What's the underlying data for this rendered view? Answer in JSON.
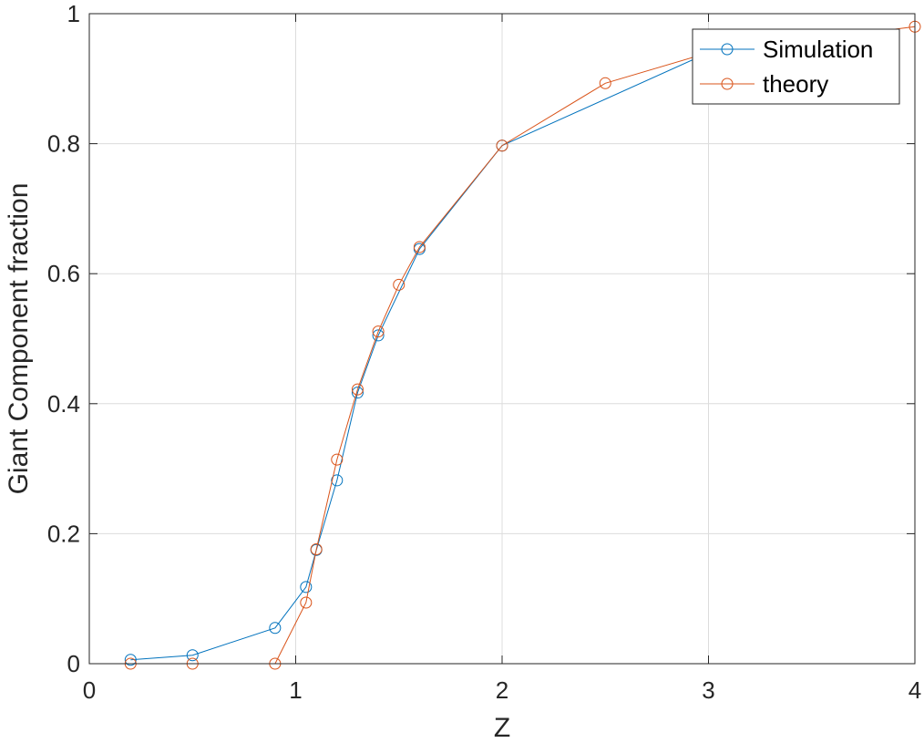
{
  "chart_data": {
    "type": "line",
    "xlabel": "Z",
    "ylabel": "Giant Component fraction",
    "xlim": [
      0,
      4
    ],
    "ylim": [
      0,
      1
    ],
    "xticks": [
      0,
      1,
      2,
      3,
      4
    ],
    "yticks": [
      0,
      0.2,
      0.4,
      0.6,
      0.8,
      1
    ],
    "xtick_labels": [
      "0",
      "1",
      "2",
      "3",
      "4"
    ],
    "ytick_labels": [
      "0",
      "0.2",
      "0.4",
      "0.6",
      "0.8",
      "1"
    ],
    "grid": true,
    "legend_position": "top-right",
    "marker": "circle",
    "series": [
      {
        "name": "Simulation",
        "color": "#0072BD",
        "points": [
          [
            0.2,
            0.006
          ],
          [
            0.5,
            0.013
          ],
          [
            0.9,
            0.055
          ],
          [
            1.05,
            0.118
          ],
          [
            1.1,
            0.175
          ],
          [
            1.2,
            0.282
          ],
          [
            1.3,
            0.417
          ],
          [
            1.4,
            0.505
          ],
          [
            1.6,
            0.638
          ],
          [
            2.0,
            0.797
          ],
          [
            3.0,
            0.94
          ]
        ]
      },
      {
        "name": "theory",
        "color": "#D95319",
        "points": [
          [
            0.2,
            0.0
          ],
          [
            0.5,
            0.0
          ],
          [
            0.9,
            0.0
          ],
          [
            1.05,
            0.094
          ],
          [
            1.1,
            0.176
          ],
          [
            1.2,
            0.314
          ],
          [
            1.3,
            0.422
          ],
          [
            1.4,
            0.511
          ],
          [
            1.5,
            0.583
          ],
          [
            1.6,
            0.641
          ],
          [
            2.0,
            0.797
          ],
          [
            2.5,
            0.893
          ],
          [
            3.0,
            0.94
          ],
          [
            4.0,
            0.98
          ]
        ]
      }
    ]
  }
}
